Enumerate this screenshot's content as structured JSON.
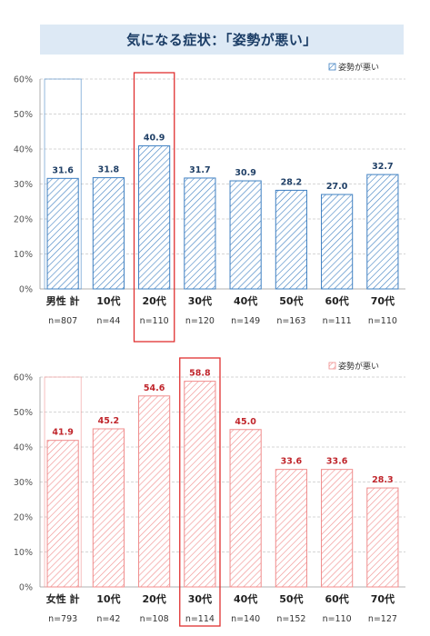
{
  "title": "気になる症状：「姿勢が悪い」",
  "chart_data": [
    {
      "type": "bar",
      "group": "male",
      "legend": "姿勢が悪い",
      "ylim": [
        0,
        60
      ],
      "yticks": [
        "0%",
        "10%",
        "20%",
        "30%",
        "40%",
        "50%",
        "60%"
      ],
      "categories": [
        "男性 計",
        "10代",
        "20代",
        "30代",
        "40代",
        "50代",
        "60代",
        "70代"
      ],
      "values": [
        31.6,
        31.8,
        40.9,
        31.7,
        30.9,
        28.2,
        27.0,
        32.7
      ],
      "value_labels": [
        "31.6",
        "31.8",
        "40.9",
        "31.7",
        "30.9",
        "28.2",
        "27.0",
        "32.7"
      ],
      "n_labels": [
        "n=807",
        "n=44",
        "n=110",
        "n=120",
        "n=149",
        "n=163",
        "n=111",
        "n=110"
      ],
      "highlight_index": 2,
      "color": "#3f80c2",
      "value_color": "#1f3f66",
      "highlight_color": "#e03030"
    },
    {
      "type": "bar",
      "group": "female",
      "legend": "姿勢が悪い",
      "ylim": [
        0,
        60
      ],
      "yticks": [
        "0%",
        "10%",
        "20%",
        "30%",
        "40%",
        "50%",
        "60%"
      ],
      "categories": [
        "女性 計",
        "10代",
        "20代",
        "30代",
        "40代",
        "50代",
        "60代",
        "70代"
      ],
      "values": [
        41.9,
        45.2,
        54.6,
        58.8,
        45.0,
        33.6,
        33.6,
        28.3
      ],
      "value_labels": [
        "41.9",
        "45.2",
        "54.6",
        "58.8",
        "45.0",
        "33.6",
        "33.6",
        "28.3"
      ],
      "n_labels": [
        "n=793",
        "n=42",
        "n=108",
        "n=114",
        "n=140",
        "n=152",
        "n=110",
        "n=127"
      ],
      "highlight_index": 3,
      "color": "#f08c8c",
      "value_color": "#c0262c",
      "highlight_color": "#e03030"
    }
  ]
}
